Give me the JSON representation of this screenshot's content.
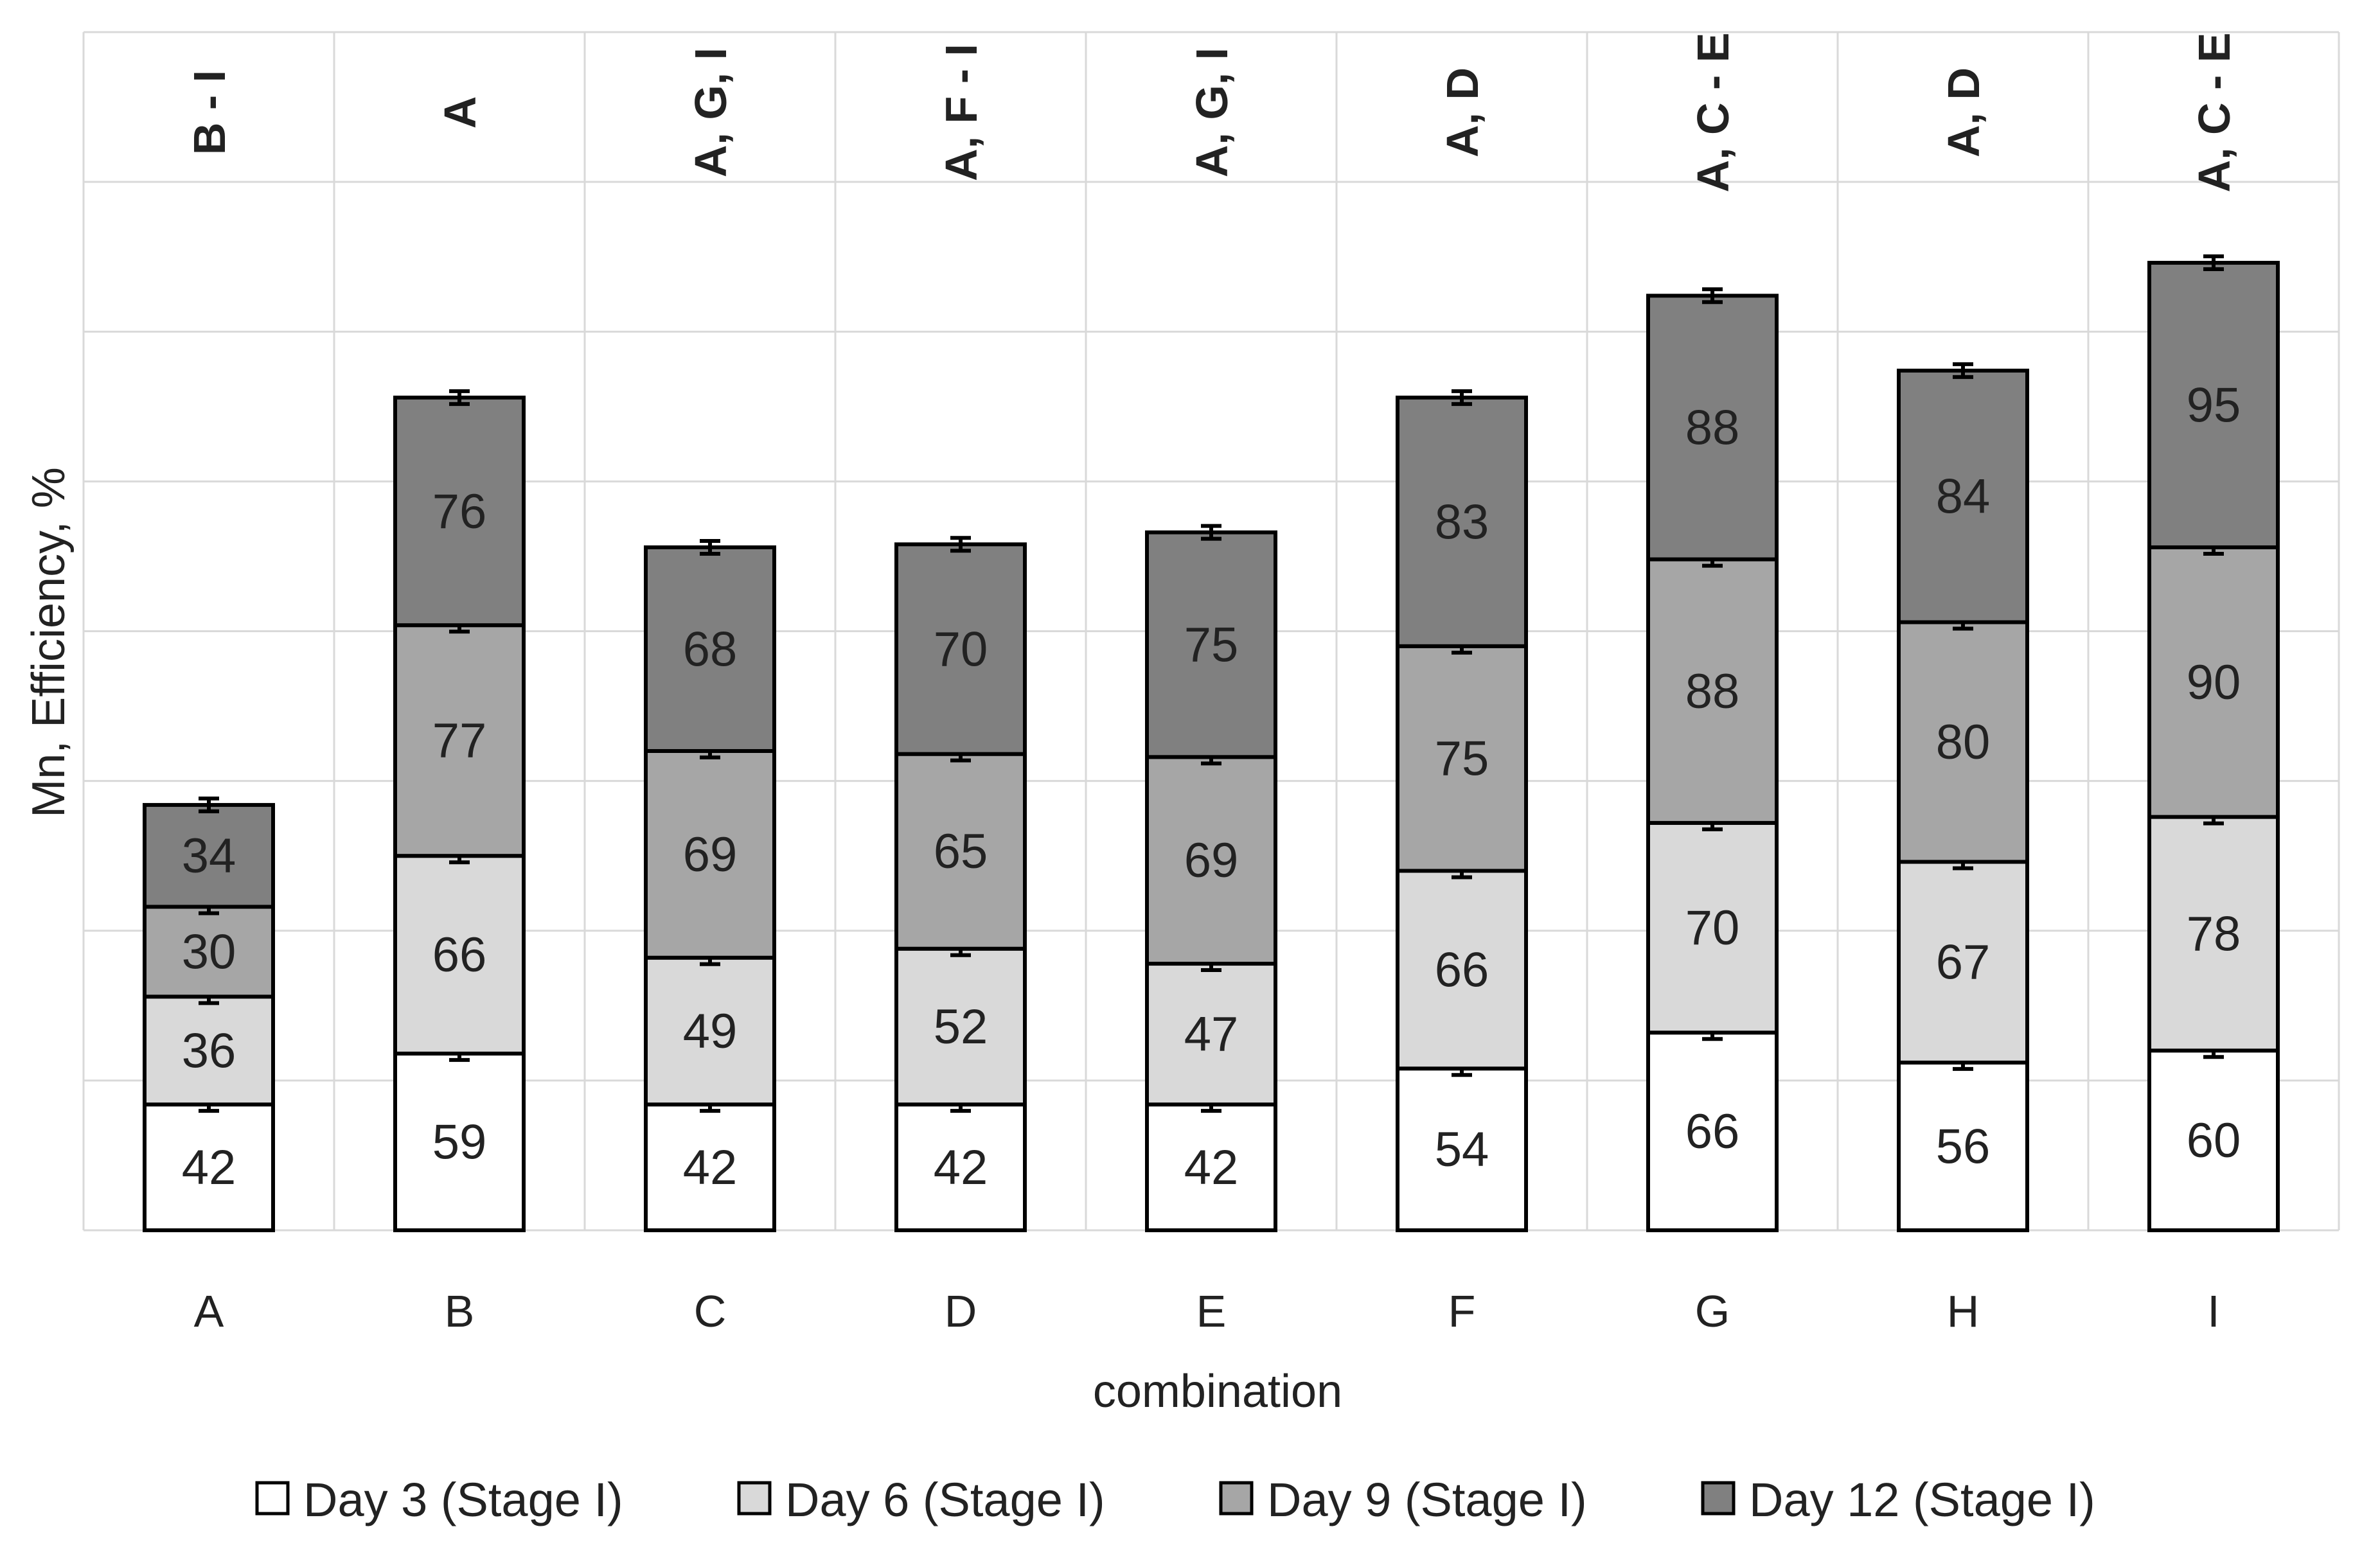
{
  "chart_data": {
    "type": "stacked-bar",
    "xlabel": "combination",
    "ylabel": "Mn, Efficiency, %",
    "categories": [
      "A",
      "B",
      "C",
      "D",
      "E",
      "F",
      "G",
      "H",
      "I"
    ],
    "series": [
      {
        "name": "Day 3 (Stage I)",
        "color": "#ffffff",
        "values": [
          42,
          59,
          42,
          42,
          42,
          54,
          66,
          56,
          60
        ]
      },
      {
        "name": "Day 6 (Stage I)",
        "color": "#d9d9d9",
        "values": [
          36,
          66,
          49,
          52,
          47,
          66,
          70,
          67,
          78
        ]
      },
      {
        "name": "Day 9 (Stage I)",
        "color": "#a6a6a6",
        "values": [
          30,
          77,
          69,
          65,
          69,
          75,
          88,
          80,
          90
        ]
      },
      {
        "name": "Day 12 (Stage I)",
        "color": "#808080",
        "values": [
          34,
          76,
          68,
          70,
          75,
          83,
          88,
          84,
          95
        ]
      }
    ],
    "significance_labels": [
      "B - I",
      "A",
      "A, G, I",
      "A, F - I",
      "A, G, I",
      "A, D",
      "A, C - E",
      "A, D",
      "A, C - E"
    ],
    "ylim": [
      0,
      400
    ],
    "grid": true,
    "legend_position": "bottom"
  }
}
